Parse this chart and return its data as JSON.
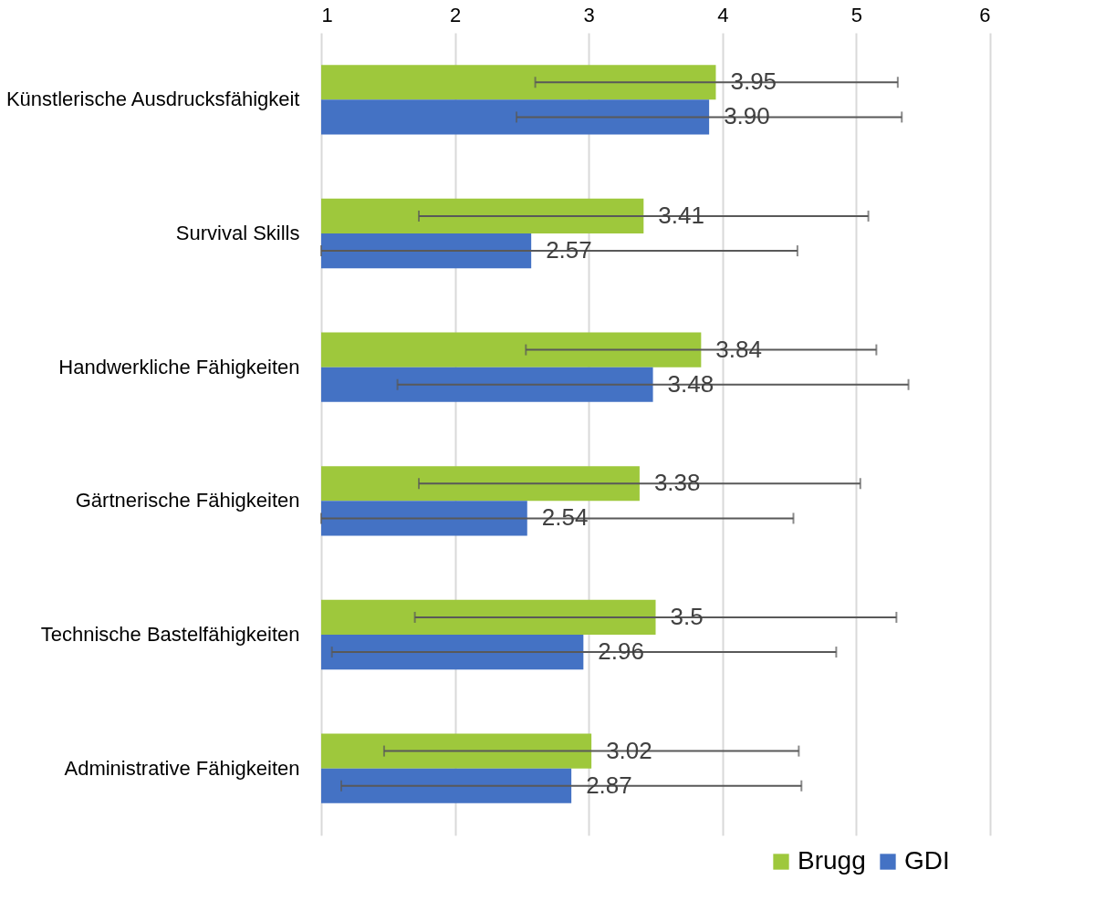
{
  "chart_data": {
    "type": "bar",
    "orientation": "horizontal",
    "categories": [
      "Künstlerische Ausdrucksfähigkeit",
      "Survival Skills",
      "Handwerkliche Fähigkeiten",
      "Gärtnerische Fähigkeiten",
      "Technische Bastelfähigkeiten",
      "Administrative Fähigkeiten"
    ],
    "series": [
      {
        "name": "Brugg",
        "color": "#9ec83c",
        "values": [
          3.95,
          3.41,
          3.84,
          3.38,
          3.5,
          3.02
        ],
        "value_labels": [
          "3.95",
          "3.41",
          "3.84",
          "3.38",
          "3.5",
          "3.02"
        ],
        "errors": [
          [
            2.6,
            5.31
          ],
          [
            1.73,
            5.09
          ],
          [
            2.53,
            5.15
          ],
          [
            1.73,
            5.03
          ],
          [
            1.7,
            5.3
          ],
          [
            1.47,
            4.57
          ]
        ]
      },
      {
        "name": "GDI",
        "color": "#4472c4",
        "values": [
          3.9,
          2.57,
          3.48,
          2.54,
          2.96,
          2.87
        ],
        "value_labels": [
          "3.90",
          "2.57",
          "3.48",
          "2.54",
          "2.96",
          "2.87"
        ],
        "errors": [
          [
            2.46,
            5.34
          ],
          [
            1.0,
            4.56
          ],
          [
            1.57,
            5.39
          ],
          [
            1.0,
            4.53
          ],
          [
            1.08,
            4.85
          ],
          [
            1.15,
            4.59
          ]
        ]
      }
    ],
    "xlim": [
      1,
      6
    ],
    "xticks": [
      1,
      2,
      3,
      4,
      5,
      6
    ],
    "grid": "x",
    "legend": "bottom right"
  }
}
